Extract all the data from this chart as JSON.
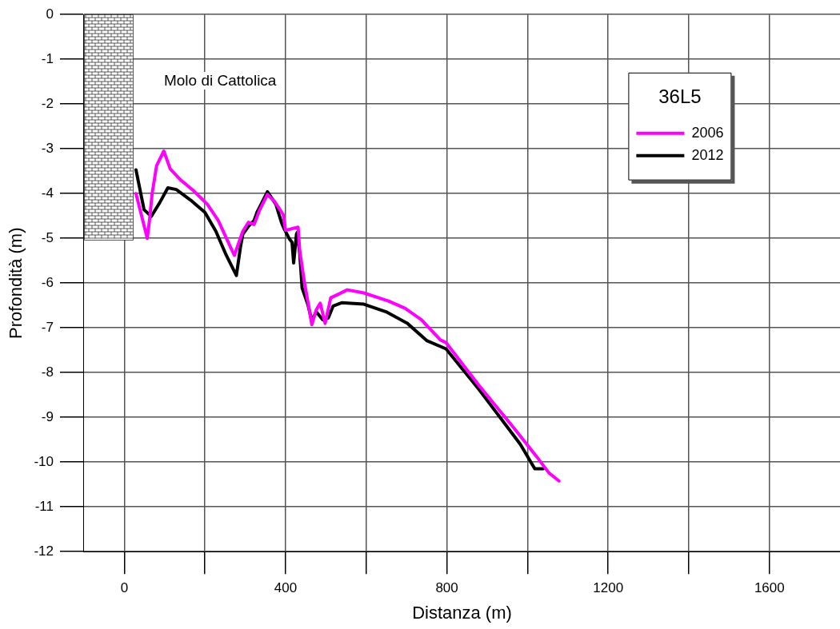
{
  "chart_data": {
    "type": "line",
    "xlabel": "Distanza (m)",
    "ylabel": "Profondità (m)",
    "legend_title": "36L5",
    "legend": "top right",
    "grid": true,
    "marker": "none",
    "line_style": "solid",
    "annotations": [
      "Molo di Cattolica"
    ],
    "xlim": [
      -100,
      1775
    ],
    "xticks": [
      0,
      {
        "value": 200,
        "label": null
      },
      400,
      {
        "value": 600,
        "label": null
      },
      800,
      {
        "value": 1000,
        "label": null
      },
      1200,
      {
        "value": 1400,
        "label": null
      },
      1600
    ],
    "ylim": [
      -12,
      0
    ],
    "yticks": [
      0,
      -1,
      -2,
      -3,
      -4,
      -5,
      -6,
      -7,
      -8,
      -9,
      -10,
      -11,
      -12
    ],
    "series": [
      {
        "name": "2006",
        "color": "#ff00ff",
        "x": [
          29,
          57,
          63,
          69,
          80,
          98,
          114,
          139,
          171,
          206,
          233,
          261,
          273,
          294,
          308,
          322,
          335,
          355,
          373,
          394,
          400,
          431,
          435,
          447,
          459,
          465,
          476,
          486,
          498,
          512,
          533,
          553,
          594,
          655,
          696,
          737,
          784,
          798,
          880,
          971,
          1022,
          1053,
          1078
        ],
        "values": [
          -4.0,
          -5.0,
          -4.55,
          -4.0,
          -3.38,
          -3.05,
          -3.45,
          -3.69,
          -3.93,
          -4.24,
          -4.6,
          -5.15,
          -5.38,
          -4.84,
          -4.64,
          -4.69,
          -4.38,
          -4.02,
          -4.18,
          -4.47,
          -4.82,
          -4.75,
          -5.27,
          -6.0,
          -6.6,
          -6.93,
          -6.6,
          -6.45,
          -6.9,
          -6.33,
          -6.24,
          -6.15,
          -6.22,
          -6.4,
          -6.56,
          -6.82,
          -7.27,
          -7.33,
          -8.29,
          -9.29,
          -9.87,
          -10.24,
          -10.42
        ]
      },
      {
        "name": "2012",
        "color": "#000000",
        "x": [
          29,
          49,
          67,
          88,
          108,
          129,
          165,
          200,
          227,
          253,
          278,
          288,
          294,
          308,
          322,
          329,
          355,
          376,
          390,
          396,
          410,
          416,
          420,
          427,
          429,
          435,
          441,
          455,
          465,
          476,
          492,
          506,
          518,
          539,
          594,
          649,
          702,
          751,
          798,
          880,
          982,
          1018,
          1039
        ],
        "values": [
          -3.47,
          -4.36,
          -4.51,
          -4.2,
          -3.87,
          -3.91,
          -4.15,
          -4.42,
          -4.84,
          -5.38,
          -5.83,
          -5.2,
          -4.91,
          -4.73,
          -4.6,
          -4.42,
          -3.96,
          -4.24,
          -4.65,
          -4.78,
          -5.02,
          -5.09,
          -5.55,
          -4.91,
          -4.87,
          -5.33,
          -6.11,
          -6.47,
          -6.84,
          -6.64,
          -6.82,
          -6.78,
          -6.51,
          -6.44,
          -6.47,
          -6.64,
          -6.9,
          -7.29,
          -7.47,
          -8.38,
          -9.6,
          -10.15,
          -10.15
        ]
      }
    ]
  }
}
